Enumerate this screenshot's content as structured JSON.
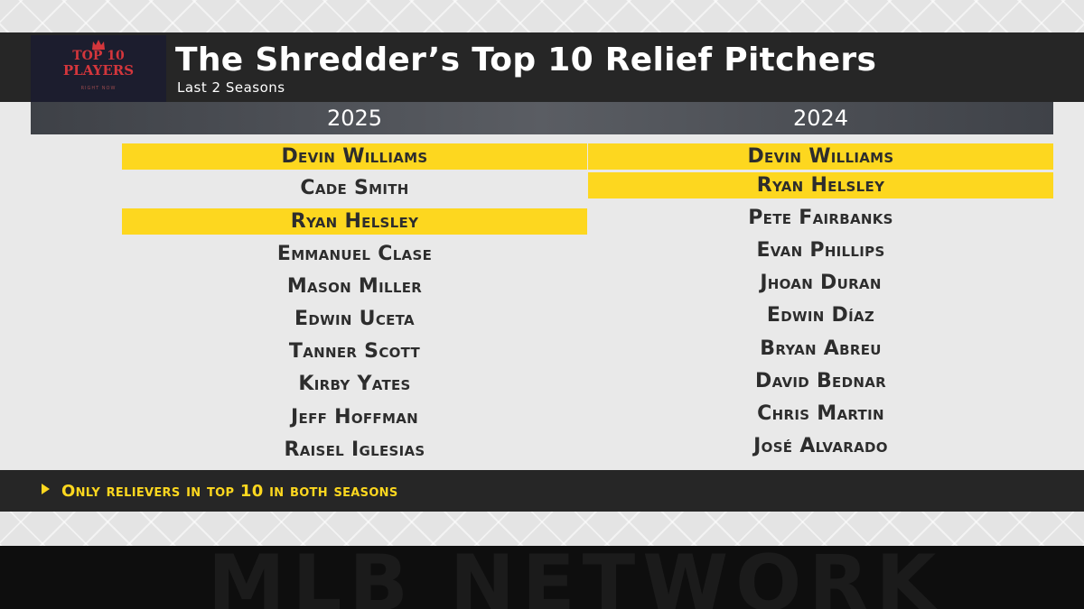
{
  "header": {
    "title": "The Shredder’s Top 10 Relief Pitchers",
    "subtitle": "Last 2 Seasons"
  },
  "logo": {
    "line1": "TOP 10",
    "line2": "PLAYERS",
    "line3": "RIGHT NOW"
  },
  "columns": [
    {
      "header": "2025",
      "items": [
        {
          "name": "Devin Williams",
          "highlight": true
        },
        {
          "name": "Cade Smith",
          "highlight": false
        },
        {
          "name": "Ryan Helsley",
          "highlight": true
        },
        {
          "name": "Emmanuel Clase",
          "highlight": false
        },
        {
          "name": "Mason Miller",
          "highlight": false
        },
        {
          "name": "Edwin Uceta",
          "highlight": false
        },
        {
          "name": "Tanner Scott",
          "highlight": false
        },
        {
          "name": "Kirby Yates",
          "highlight": false
        },
        {
          "name": "Jeff Hoffman",
          "highlight": false
        },
        {
          "name": "Raisel Iglesias",
          "highlight": false
        }
      ]
    },
    {
      "header": "2024",
      "items": [
        {
          "name": "Devin Williams",
          "highlight": true
        },
        {
          "name": "Ryan Helsley",
          "highlight": true
        },
        {
          "name": "Pete Fairbanks",
          "highlight": false
        },
        {
          "name": "Evan Phillips",
          "highlight": false
        },
        {
          "name": "Jhoan Duran",
          "highlight": false
        },
        {
          "name": "Edwin Díaz",
          "highlight": false
        },
        {
          "name": "Bryan Abreu",
          "highlight": false
        },
        {
          "name": "David Bednar",
          "highlight": false
        },
        {
          "name": "Chris Martin",
          "highlight": false
        },
        {
          "name": "José Alvarado",
          "highlight": false
        }
      ]
    }
  ],
  "footnote": "Only relievers in top 10 in both seasons",
  "watermark": "MLB NETWORK",
  "colors": {
    "highlight": "#fdd71f",
    "dark_bar": "#262626",
    "logo_red": "#d4363c"
  }
}
